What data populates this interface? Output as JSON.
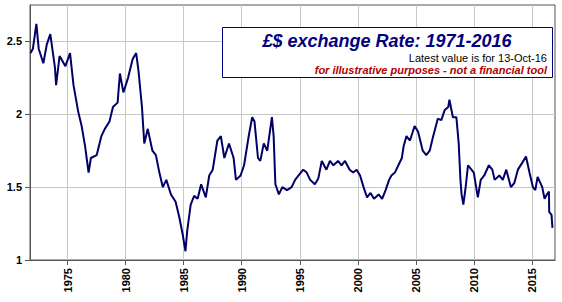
{
  "chart_data": {
    "type": "line",
    "title": "£$ exchange Rate: 1971-2016",
    "subtitle": "Latest value is for 13-Oct-16",
    "annotations": [
      "for illustrative purposes - not a financial tool"
    ],
    "color": "#000066",
    "grid": true,
    "xlim": [
      1971.75,
      2017
    ],
    "xticks": [
      1975,
      1980,
      1985,
      1990,
      1995,
      2000,
      2005,
      2010,
      2015
    ],
    "ylim": [
      1,
      2.75
    ],
    "yticks": [
      1,
      1.5,
      2,
      2.5
    ],
    "x": [
      1971.8,
      1972.0,
      1972.3,
      1972.5,
      1972.9,
      1973.2,
      1973.5,
      1973.9,
      1974.0,
      1974.3,
      1974.8,
      1975.2,
      1975.5,
      1975.9,
      1976.2,
      1976.5,
      1976.8,
      1977.0,
      1977.5,
      1977.9,
      1978.2,
      1978.6,
      1978.9,
      1979.3,
      1979.5,
      1979.8,
      1980.2,
      1980.6,
      1980.9,
      1981.1,
      1981.4,
      1981.6,
      1981.9,
      1982.3,
      1982.6,
      1982.9,
      1983.2,
      1983.5,
      1983.9,
      1984.3,
      1984.6,
      1984.9,
      1985.15,
      1985.3,
      1985.6,
      1985.9,
      1986.2,
      1986.5,
      1986.9,
      1987.2,
      1987.5,
      1987.9,
      1988.2,
      1988.5,
      1988.9,
      1989.3,
      1989.5,
      1989.9,
      1990.2,
      1990.6,
      1990.9,
      1991.1,
      1991.4,
      1991.6,
      1991.9,
      1992.2,
      1992.6,
      1992.75,
      1992.9,
      1993.2,
      1993.5,
      1993.9,
      1994.3,
      1994.6,
      1994.9,
      1995.3,
      1995.6,
      1995.9,
      1996.3,
      1996.6,
      1996.9,
      1997.3,
      1997.6,
      1997.9,
      1998.3,
      1998.6,
      1998.9,
      1999.3,
      1999.6,
      1999.9,
      2000.2,
      2000.5,
      2000.8,
      2001.1,
      2001.4,
      2001.8,
      2002.1,
      2002.4,
      2002.7,
      2002.9,
      2003.2,
      2003.5,
      2003.8,
      2003.95,
      2004.2,
      2004.5,
      2004.9,
      2005.2,
      2005.6,
      2005.9,
      2006.2,
      2006.5,
      2006.9,
      2007.2,
      2007.5,
      2007.8,
      2007.9,
      2008.2,
      2008.5,
      2008.7,
      2008.85,
      2008.95,
      2009.1,
      2009.3,
      2009.5,
      2009.8,
      2010.0,
      2010.35,
      2010.6,
      2010.9,
      2011.3,
      2011.6,
      2011.8,
      2012.2,
      2012.5,
      2012.8,
      2013.2,
      2013.5,
      2013.8,
      2014.2,
      2014.5,
      2014.8,
      2015.1,
      2015.3,
      2015.5,
      2015.9,
      2016.1,
      2016.3,
      2016.48,
      2016.5,
      2016.7,
      2016.78
    ],
    "values": [
      2.42,
      2.45,
      2.62,
      2.45,
      2.35,
      2.48,
      2.55,
      2.32,
      2.2,
      2.4,
      2.33,
      2.42,
      2.2,
      2.02,
      1.92,
      1.78,
      1.6,
      1.7,
      1.72,
      1.85,
      1.9,
      1.95,
      2.05,
      2.08,
      2.28,
      2.15,
      2.25,
      2.38,
      2.42,
      2.3,
      2.05,
      1.8,
      1.9,
      1.75,
      1.72,
      1.6,
      1.5,
      1.55,
      1.45,
      1.4,
      1.3,
      1.18,
      1.06,
      1.2,
      1.38,
      1.44,
      1.42,
      1.52,
      1.43,
      1.58,
      1.62,
      1.82,
      1.85,
      1.7,
      1.8,
      1.7,
      1.55,
      1.58,
      1.65,
      1.85,
      1.98,
      1.95,
      1.7,
      1.68,
      1.8,
      1.75,
      1.98,
      1.85,
      1.52,
      1.45,
      1.5,
      1.48,
      1.5,
      1.55,
      1.58,
      1.62,
      1.6,
      1.55,
      1.52,
      1.56,
      1.68,
      1.62,
      1.68,
      1.65,
      1.68,
      1.65,
      1.68,
      1.62,
      1.6,
      1.62,
      1.58,
      1.5,
      1.43,
      1.46,
      1.42,
      1.45,
      1.42,
      1.48,
      1.55,
      1.58,
      1.6,
      1.65,
      1.7,
      1.78,
      1.85,
      1.82,
      1.92,
      1.88,
      1.75,
      1.72,
      1.75,
      1.85,
      1.97,
      1.96,
      2.03,
      2.05,
      2.1,
      1.98,
      1.98,
      1.8,
      1.55,
      1.45,
      1.38,
      1.5,
      1.65,
      1.62,
      1.6,
      1.43,
      1.55,
      1.58,
      1.65,
      1.62,
      1.55,
      1.58,
      1.55,
      1.62,
      1.5,
      1.53,
      1.62,
      1.67,
      1.71,
      1.6,
      1.5,
      1.48,
      1.57,
      1.5,
      1.42,
      1.45,
      1.47,
      1.33,
      1.31,
      1.22
    ]
  }
}
